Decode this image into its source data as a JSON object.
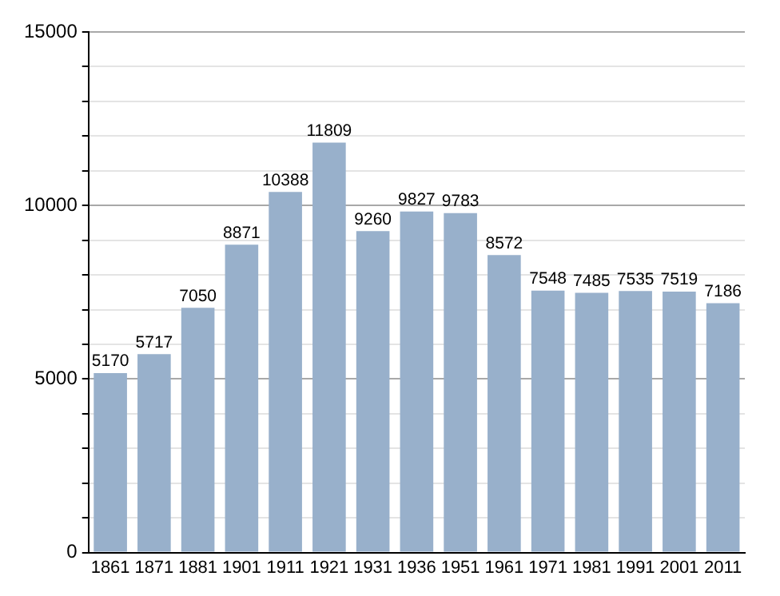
{
  "chart_data": {
    "type": "bar",
    "categories": [
      "1861",
      "1871",
      "1881",
      "1901",
      "1911",
      "1921",
      "1931",
      "1936",
      "1951",
      "1961",
      "1971",
      "1981",
      "1991",
      "2001",
      "2011"
    ],
    "values": [
      5170,
      5717,
      7050,
      8871,
      10388,
      11809,
      9260,
      9827,
      9783,
      8572,
      7548,
      7485,
      7535,
      7519,
      7186
    ],
    "color": "#98b0cb",
    "ylim": [
      0,
      15000
    ],
    "yticks": [
      0,
      {
        "value": 1000,
        "label": null
      },
      {
        "value": 2000,
        "label": null
      },
      {
        "value": 3000,
        "label": null
      },
      {
        "value": 4000,
        "label": null
      },
      5000,
      {
        "value": 6000,
        "label": null
      },
      {
        "value": 7000,
        "label": null
      },
      {
        "value": 8000,
        "label": null
      },
      {
        "value": 9000,
        "label": null
      },
      10000,
      {
        "value": 11000,
        "label": null
      },
      {
        "value": 12000,
        "label": null
      },
      {
        "value": 13000,
        "label": null
      },
      {
        "value": 14000,
        "label": null
      },
      15000
    ],
    "grid": "y",
    "data_labels": true,
    "legend": false
  }
}
